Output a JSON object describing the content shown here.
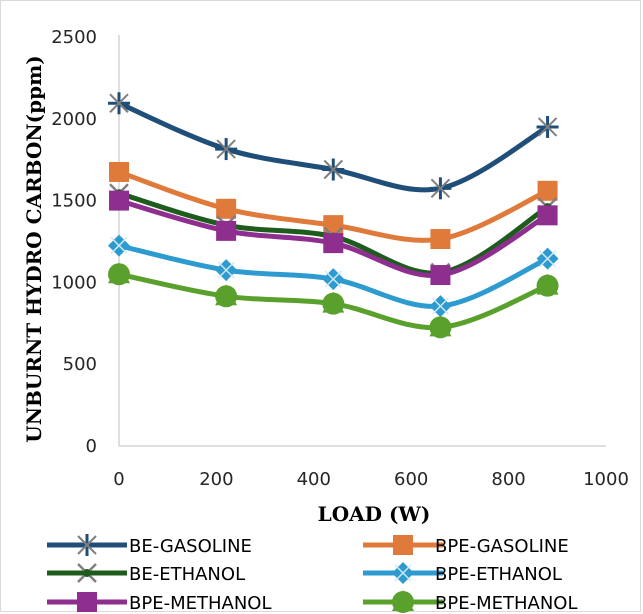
{
  "chart_data": {
    "type": "line",
    "xlabel": "LOAD (W)",
    "ylabel": "UNBURNT HYDRO CARBON(ppm)",
    "xlim": [
      0,
      1000
    ],
    "ylim": [
      0,
      2500
    ],
    "x_ticks": [
      "0",
      "200",
      "400",
      "600",
      "800",
      "1000"
    ],
    "y_ticks": [
      "0",
      "500",
      "1000",
      "1500",
      "2000",
      "2500"
    ],
    "grid": false,
    "legend_position": "bottom",
    "x": [
      0,
      220,
      440,
      660,
      880
    ],
    "series": [
      {
        "name": "BE-GASOLINE",
        "color": "#1f4e79",
        "marker": "plus",
        "values": [
          2095,
          1815,
          1690,
          1575,
          1950
        ]
      },
      {
        "name": "BPE-GASOLINE",
        "color": "#e07a3a",
        "marker": "square",
        "values": [
          1675,
          1450,
          1350,
          1265,
          1560
        ]
      },
      {
        "name": "BE-ETHANOL",
        "color": "#1e5c1e",
        "marker": "x",
        "values": [
          1545,
          1350,
          1280,
          1060,
          1460
        ]
      },
      {
        "name": "BPE-ETHANOL",
        "color": "#2e9bd0",
        "marker": "diamond",
        "values": [
          1225,
          1075,
          1020,
          855,
          1145
        ]
      },
      {
        "name": "BPE-METHANOL",
        "color": "#8e2e8e",
        "marker": "square",
        "values": [
          1500,
          1315,
          1240,
          1045,
          1410
        ]
      },
      {
        "name": "BPE-METHANOL",
        "color": "#5aa02c",
        "marker": "circle-triangle",
        "values": [
          1050,
          915,
          870,
          725,
          980
        ]
      }
    ]
  }
}
